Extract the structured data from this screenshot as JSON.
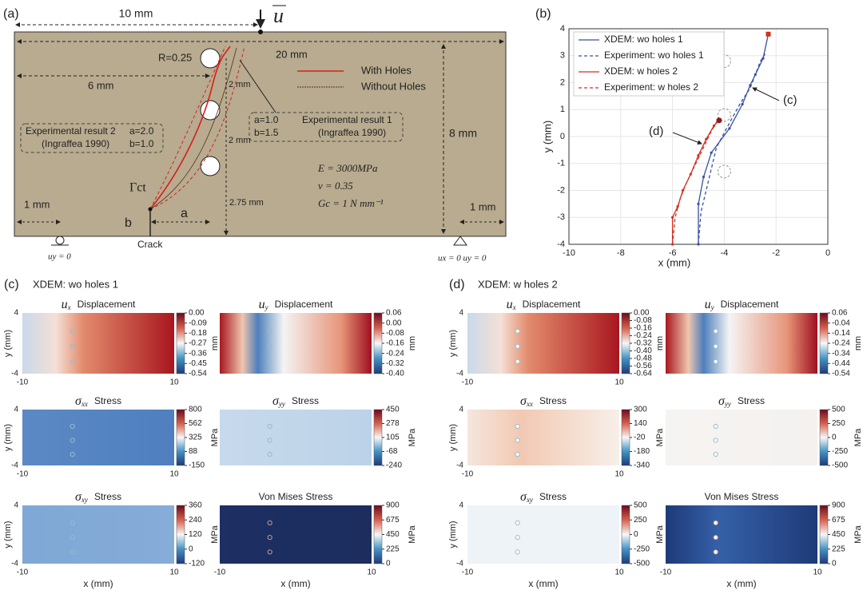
{
  "figure_a": {
    "label": "(a)",
    "span_top": "10 mm",
    "load": "u",
    "width": "20 mm",
    "radius": "R=0.25",
    "hole_x": "6 mm",
    "legend": [
      "With Holes",
      "Without Holes"
    ],
    "spacing": [
      "2 mm",
      "2 mm"
    ],
    "exp1": {
      "ab": [
        "a=1.0",
        "b=1.5"
      ],
      "title": "Experimental result 1",
      "source": "(Ingraffea 1990)"
    },
    "exp2": {
      "title": "Experimental result 2",
      "ab": [
        "a=2.0",
        "b=1.0"
      ],
      "source": "(Ingraffea 1990)"
    },
    "height": "8 mm",
    "material": [
      "E = 3000MPa",
      "ν = 0.35",
      "Gc = 1 N mm⁻¹"
    ],
    "crack_boundary": "Γct",
    "a": "a",
    "b": "b",
    "hole_y": "2.75 mm",
    "support_left": "1 mm",
    "support_right": "1 mm",
    "crack": "Crack",
    "bc_left": "uy = 0",
    "bc_right": "ux = 0  uy = 0"
  },
  "chart_data": {
    "type": "line",
    "label": "(b)",
    "xlabel": "x (mm)",
    "ylabel": "y (mm)",
    "xlim": [
      -10,
      0
    ],
    "ylim": [
      -4,
      4
    ],
    "xticks": [
      -10,
      -8,
      -6,
      -4,
      -2,
      0
    ],
    "yticks": [
      -4,
      -3,
      -2,
      -1,
      0,
      1,
      2,
      3,
      4
    ],
    "grid": true,
    "legend": "upper left",
    "series": [
      {
        "name": "XDEM: wo holes 1",
        "color": "#3a4fa0",
        "dash": false,
        "x": [
          -5,
          -5,
          -4.8,
          -4.5,
          -3.8,
          -3.3,
          -3,
          -2.8,
          -2.5,
          -2.3
        ],
        "values": [
          -4,
          -2.5,
          -1.5,
          -0.6,
          0.3,
          1.2,
          1.9,
          2.3,
          2.9,
          3.8
        ]
      },
      {
        "name": "Experiment: wo holes 1",
        "color": "#3a4fa0",
        "dash": true,
        "x": [
          -5,
          -4.9,
          -4.6,
          -4.3,
          -3.8,
          -3.4,
          -3,
          -2.6,
          -2.4
        ],
        "values": [
          -4,
          -2.8,
          -1.6,
          -0.4,
          0.5,
          1.2,
          1.8,
          2.8,
          3.1
        ]
      },
      {
        "name": "XDEM: w holes 2",
        "color": "#d03020",
        "dash": false,
        "x": [
          -6,
          -6,
          -5.8,
          -5.6,
          -5.3,
          -5,
          -4.7,
          -4.4,
          -4.2
        ],
        "values": [
          -4,
          -3,
          -2.6,
          -2,
          -1.4,
          -0.7,
          -0.1,
          0.4,
          0.6
        ]
      },
      {
        "name": "Experiment: w holes 2",
        "color": "#d03020",
        "dash": true,
        "x": [
          -6,
          -5.9,
          -5.7,
          -5.5,
          -5.1,
          -4.8,
          -4.5,
          -4.2
        ],
        "values": [
          -4,
          -3,
          -2.3,
          -1.8,
          -1,
          -0.4,
          0.2,
          0.7
        ]
      }
    ],
    "annotations": [
      "(c)",
      "(d)"
    ]
  },
  "panels": [
    {
      "label": "(c)",
      "title": "XDEM:  wo holes 1",
      "plots": [
        {
          "symbol": "u",
          "sub": "x",
          "name": "Displacement",
          "unit": "mm",
          "ticks": [
            "0.00",
            "-0.09",
            "-0.18",
            "-0.27",
            "-0.36",
            "-0.45",
            "-0.54"
          ]
        },
        {
          "symbol": "u",
          "sub": "y",
          "name": "Displacement",
          "unit": "mm",
          "ticks": [
            "0.06",
            "0.00",
            "-0.08",
            "-0.16",
            "-0.24",
            "-0.32",
            "-0.40"
          ]
        },
        {
          "symbol": "σ",
          "sub": "xx",
          "name": "Stress",
          "unit": "MPa",
          "ticks": [
            "800",
            "562",
            "325",
            "88",
            "-150"
          ]
        },
        {
          "symbol": "σ",
          "sub": "yy",
          "name": "Stress",
          "unit": "MPa",
          "ticks": [
            "450",
            "278",
            "105",
            "-68",
            "-240"
          ]
        },
        {
          "symbol": "σ",
          "sub": "xy",
          "name": "Stress",
          "unit": "MPa",
          "ticks": [
            "360",
            "240",
            "120",
            "0",
            "-120"
          ]
        },
        {
          "name": "Von Mises Stress",
          "unit": "MPa",
          "ticks": [
            "900",
            "675",
            "450",
            "225",
            "0"
          ]
        }
      ]
    },
    {
      "label": "(d)",
      "title": "XDEM:  w holes 2",
      "plots": [
        {
          "symbol": "u",
          "sub": "x",
          "name": "Displacement",
          "unit": "mm",
          "ticks": [
            "0.00",
            "-0.08",
            "-0.16",
            "-0.24",
            "-0.32",
            "-0.40",
            "-0.48",
            "-0.56",
            "-0.64"
          ]
        },
        {
          "symbol": "u",
          "sub": "y",
          "name": "Displacement",
          "unit": "mm",
          "ticks": [
            "0.06",
            "-0.04",
            "-0.14",
            "-0.24",
            "-0.34",
            "-0.44",
            "-0.54"
          ]
        },
        {
          "symbol": "σ",
          "sub": "xx",
          "name": "Stress",
          "unit": "MPa",
          "ticks": [
            "300",
            "140",
            "-20",
            "-180",
            "-340"
          ]
        },
        {
          "symbol": "σ",
          "sub": "yy",
          "name": "Stress",
          "unit": "MPa",
          "ticks": [
            "500",
            "250",
            "0",
            "-250",
            "-500"
          ]
        },
        {
          "symbol": "σ",
          "sub": "xy",
          "name": "Stress",
          "unit": "MPa",
          "ticks": [
            "500",
            "250",
            "0",
            "-250",
            "-500"
          ]
        },
        {
          "name": "Von Mises Stress",
          "unit": "MPa",
          "ticks": [
            "900",
            "675",
            "450",
            "225",
            "0"
          ]
        }
      ]
    }
  ],
  "field_axes": {
    "yticks": [
      "4",
      "-4"
    ],
    "xticks": [
      "-10",
      "10"
    ],
    "ylabel": "y (mm)",
    "xlabel": "x (mm)"
  }
}
